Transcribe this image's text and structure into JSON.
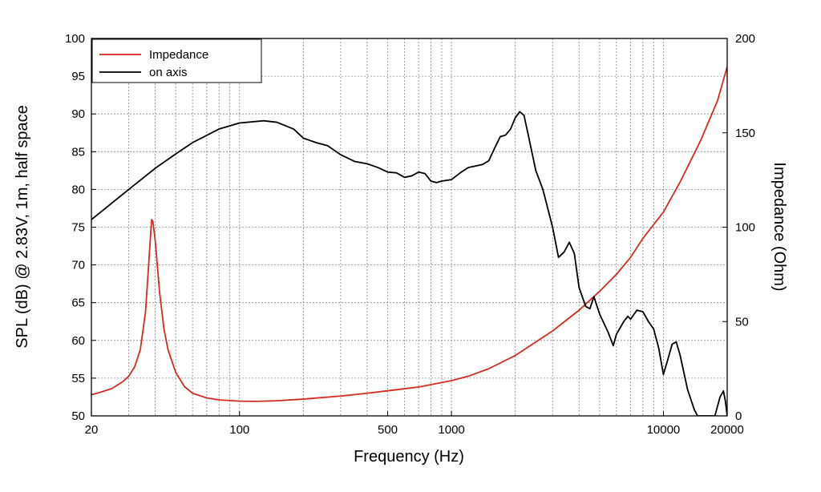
{
  "chart_data": {
    "type": "line",
    "x_scale": "log",
    "xlabel": "Frequency (Hz)",
    "ylabel_left": "SPL (dB) @ 2.83V, 1m, half space",
    "ylabel_right": "Impedance (Ohm)",
    "xlim": [
      20,
      20000
    ],
    "ylim_left": [
      50,
      100
    ],
    "ylim_right": [
      0,
      200
    ],
    "x_ticks": [
      {
        "value": 20,
        "label": "20"
      },
      {
        "value": 100,
        "label": "100"
      },
      {
        "value": 500,
        "label": "500"
      },
      {
        "value": 1000,
        "label": "1000"
      },
      {
        "value": 10000,
        "label": "10000"
      },
      {
        "value": 20000,
        "label": "20000"
      }
    ],
    "y_ticks_left": [
      {
        "value": 50,
        "label": "50"
      },
      {
        "value": 55,
        "label": "55"
      },
      {
        "value": 60,
        "label": "60"
      },
      {
        "value": 65,
        "label": "65"
      },
      {
        "value": 70,
        "label": "70"
      },
      {
        "value": 75,
        "label": "75"
      },
      {
        "value": 80,
        "label": "80"
      },
      {
        "value": 85,
        "label": "85"
      },
      {
        "value": 90,
        "label": "90"
      },
      {
        "value": 95,
        "label": "95"
      },
      {
        "value": 100,
        "label": "100"
      }
    ],
    "y_ticks_right": [
      {
        "value": 0,
        "label": "0"
      },
      {
        "value": 50,
        "label": "50"
      },
      {
        "value": 100,
        "label": "100"
      },
      {
        "value": 150,
        "label": "150"
      },
      {
        "value": 200,
        "label": "200"
      }
    ],
    "grid": true,
    "legend_position": "top-left",
    "series": [
      {
        "name": "Impedance",
        "axis": "right",
        "color": "#d42a20",
        "points": [
          [
            20,
            11.2
          ],
          [
            22,
            12.5
          ],
          [
            25,
            14.5
          ],
          [
            28,
            18
          ],
          [
            30,
            21
          ],
          [
            32,
            26
          ],
          [
            34,
            35
          ],
          [
            36,
            55
          ],
          [
            37,
            75
          ],
          [
            38,
            95
          ],
          [
            38.5,
            104
          ],
          [
            39,
            103
          ],
          [
            40,
            93
          ],
          [
            42,
            65
          ],
          [
            44,
            46
          ],
          [
            46,
            35
          ],
          [
            50,
            23
          ],
          [
            55,
            15.5
          ],
          [
            60,
            12
          ],
          [
            70,
            9.5
          ],
          [
            80,
            8.5
          ],
          [
            100,
            7.8
          ],
          [
            120,
            7.7
          ],
          [
            150,
            8.0
          ],
          [
            200,
            8.9
          ],
          [
            300,
            10.5
          ],
          [
            400,
            12
          ],
          [
            500,
            13.3
          ],
          [
            700,
            15.3
          ],
          [
            1000,
            18.7
          ],
          [
            1200,
            21
          ],
          [
            1500,
            25
          ],
          [
            2000,
            32
          ],
          [
            3000,
            45
          ],
          [
            4000,
            56
          ],
          [
            5000,
            66
          ],
          [
            6000,
            75
          ],
          [
            7000,
            84
          ],
          [
            8000,
            94
          ],
          [
            10000,
            108
          ],
          [
            12000,
            124
          ],
          [
            15000,
            146
          ],
          [
            18000,
            167
          ],
          [
            20000,
            185
          ]
        ]
      },
      {
        "name": "on axis",
        "axis": "left",
        "color": "#000000",
        "points": [
          [
            20,
            76
          ],
          [
            30,
            80
          ],
          [
            40,
            82.8
          ],
          [
            50,
            84.7
          ],
          [
            60,
            86.2
          ],
          [
            80,
            88.0
          ],
          [
            100,
            88.8
          ],
          [
            130,
            89.1
          ],
          [
            150,
            88.9
          ],
          [
            180,
            88
          ],
          [
            200,
            86.8
          ],
          [
            230,
            86.2
          ],
          [
            260,
            85.8
          ],
          [
            300,
            84.6
          ],
          [
            350,
            83.7
          ],
          [
            400,
            83.4
          ],
          [
            450,
            82.9
          ],
          [
            500,
            82.3
          ],
          [
            550,
            82.2
          ],
          [
            600,
            81.6
          ],
          [
            650,
            81.8
          ],
          [
            700,
            82.3
          ],
          [
            750,
            82.1
          ],
          [
            800,
            81.1
          ],
          [
            850,
            80.9
          ],
          [
            900,
            81.1
          ],
          [
            1000,
            81.3
          ],
          [
            1100,
            82.2
          ],
          [
            1200,
            82.9
          ],
          [
            1400,
            83.3
          ],
          [
            1500,
            83.8
          ],
          [
            1600,
            85.5
          ],
          [
            1700,
            87
          ],
          [
            1800,
            87.2
          ],
          [
            1900,
            88
          ],
          [
            2000,
            89.5
          ],
          [
            2100,
            90.3
          ],
          [
            2200,
            89.8
          ],
          [
            2300,
            87.3
          ],
          [
            2500,
            82.5
          ],
          [
            2700,
            80
          ],
          [
            3000,
            75
          ],
          [
            3200,
            71
          ],
          [
            3400,
            71.7
          ],
          [
            3600,
            73
          ],
          [
            3800,
            71.5
          ],
          [
            4000,
            67
          ],
          [
            4300,
            64.5
          ],
          [
            4500,
            64.2
          ],
          [
            4700,
            65.8
          ],
          [
            5000,
            63.5
          ],
          [
            5500,
            61
          ],
          [
            5800,
            59.3
          ],
          [
            6000,
            60.8
          ],
          [
            6500,
            62.5
          ],
          [
            6800,
            63.2
          ],
          [
            7000,
            62.8
          ],
          [
            7500,
            64
          ],
          [
            8000,
            63.8
          ],
          [
            8500,
            62.5
          ],
          [
            9000,
            61.5
          ],
          [
            9500,
            59
          ],
          [
            10000,
            55.5
          ],
          [
            10500,
            57.5
          ],
          [
            11000,
            59.5
          ],
          [
            11500,
            59.8
          ],
          [
            12000,
            58
          ],
          [
            13000,
            53.5
          ],
          [
            14000,
            50.8
          ],
          [
            14500,
            50
          ],
          [
            17500,
            50
          ],
          [
            18500,
            52.5
          ],
          [
            19200,
            53.3
          ],
          [
            19600,
            52
          ],
          [
            20000,
            50
          ]
        ]
      }
    ]
  }
}
